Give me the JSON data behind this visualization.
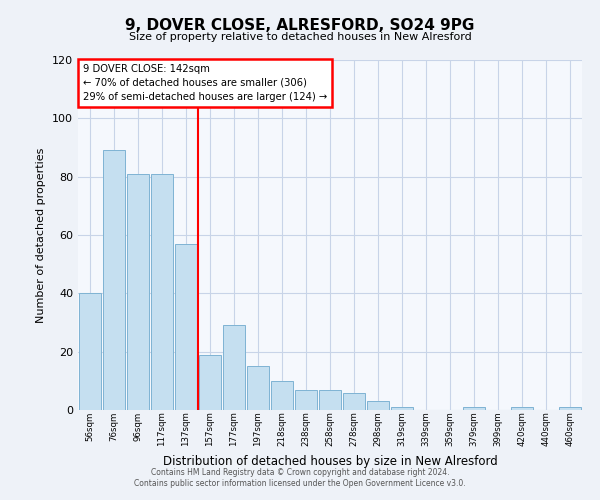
{
  "title": "9, DOVER CLOSE, ALRESFORD, SO24 9PG",
  "subtitle": "Size of property relative to detached houses in New Alresford",
  "xlabel": "Distribution of detached houses by size in New Alresford",
  "ylabel": "Number of detached properties",
  "bin_labels": [
    "56sqm",
    "76sqm",
    "96sqm",
    "117sqm",
    "137sqm",
    "157sqm",
    "177sqm",
    "197sqm",
    "218sqm",
    "238sqm",
    "258sqm",
    "278sqm",
    "298sqm",
    "319sqm",
    "339sqm",
    "359sqm",
    "379sqm",
    "399sqm",
    "420sqm",
    "440sqm",
    "460sqm"
  ],
  "bar_values": [
    40,
    89,
    81,
    81,
    57,
    19,
    29,
    15,
    10,
    7,
    7,
    6,
    3,
    1,
    0,
    0,
    1,
    0,
    1,
    0,
    1
  ],
  "bar_color": "#c5dff0",
  "bar_edge_color": "#7fb3d3",
  "vline_color": "red",
  "vline_position": 5.0,
  "annotation_title": "9 DOVER CLOSE: 142sqm",
  "annotation_line1": "← 70% of detached houses are smaller (306)",
  "annotation_line2": "29% of semi-detached houses are larger (124) →",
  "annotation_box_color": "red",
  "ylim": [
    0,
    120
  ],
  "yticks": [
    0,
    20,
    40,
    60,
    80,
    100,
    120
  ],
  "footer_line1": "Contains HM Land Registry data © Crown copyright and database right 2024.",
  "footer_line2": "Contains public sector information licensed under the Open Government Licence v3.0.",
  "bg_color": "#eef2f8",
  "plot_bg_color": "#f5f8fd",
  "grid_color": "#c8d4e8"
}
